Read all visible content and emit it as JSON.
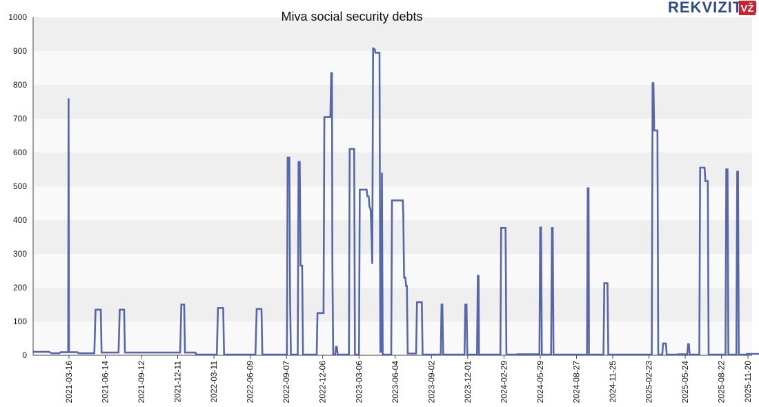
{
  "logo": {
    "text": "REKVIZITAI",
    "badge": "VŽ",
    "text_color": "#2d4a8a",
    "badge_color": "#d0202a"
  },
  "chart_data": {
    "type": "line",
    "title": "Miva social security debts",
    "xlabel": "",
    "ylabel": "",
    "ylim": [
      0,
      1000
    ],
    "yticks": [
      0,
      100,
      200,
      300,
      400,
      500,
      600,
      700,
      800,
      900,
      1000
    ],
    "xlim": [
      0,
      1785
    ],
    "xticks": [
      {
        "label": "2021-03-16",
        "x": 89
      },
      {
        "label": "2021-06-14",
        "x": 179
      },
      {
        "label": "2021-09-12",
        "x": 269
      },
      {
        "label": "2021-12-11",
        "x": 359
      },
      {
        "label": "2022-03-11",
        "x": 449
      },
      {
        "label": "2022-06-09",
        "x": 539
      },
      {
        "label": "2022-09-07",
        "x": 629
      },
      {
        "label": "2022-12-06",
        "x": 719
      },
      {
        "label": "2023-03-06",
        "x": 809
      },
      {
        "label": "2023-06-04",
        "x": 899
      },
      {
        "label": "2023-09-02",
        "x": 989
      },
      {
        "label": "2023-12-01",
        "x": 1079
      },
      {
        "label": "2024-02-29",
        "x": 1169
      },
      {
        "label": "2024-05-29",
        "x": 1259
      },
      {
        "label": "2024-08-27",
        "x": 1349
      },
      {
        "label": "2024-11-25",
        "x": 1439
      },
      {
        "label": "2025-02-23",
        "x": 1529
      },
      {
        "label": "2025-05-24",
        "x": 1619
      },
      {
        "label": "2025-08-22",
        "x": 1709
      },
      {
        "label": "2025-11-20",
        "x": 1799
      }
    ],
    "grid": "horizontal-bands",
    "series": [
      {
        "name": "Social security debts",
        "color": "#3a4f9c",
        "points": [
          [
            0,
            10
          ],
          [
            40,
            10
          ],
          [
            45,
            6
          ],
          [
            65,
            6
          ],
          [
            68,
            9
          ],
          [
            87,
            9
          ],
          [
            88,
            760
          ],
          [
            89,
            9
          ],
          [
            110,
            9
          ],
          [
            113,
            6
          ],
          [
            152,
            6
          ],
          [
            155,
            135
          ],
          [
            168,
            135
          ],
          [
            170,
            8
          ],
          [
            212,
            8
          ],
          [
            215,
            135
          ],
          [
            226,
            135
          ],
          [
            228,
            8
          ],
          [
            365,
            8
          ],
          [
            368,
            150
          ],
          [
            375,
            150
          ],
          [
            377,
            8
          ],
          [
            403,
            8
          ],
          [
            405,
            2
          ],
          [
            456,
            2
          ],
          [
            459,
            140
          ],
          [
            472,
            140
          ],
          [
            474,
            2
          ],
          [
            552,
            2
          ],
          [
            555,
            137
          ],
          [
            567,
            137
          ],
          [
            569,
            2
          ],
          [
            630,
            2
          ],
          [
            632,
            585
          ],
          [
            636,
            585
          ],
          [
            638,
            170
          ],
          [
            640,
            2
          ],
          [
            657,
            2
          ],
          [
            659,
            572
          ],
          [
            662,
            572
          ],
          [
            664,
            265
          ],
          [
            668,
            265
          ],
          [
            670,
            2
          ],
          [
            704,
            2
          ],
          [
            706,
            125
          ],
          [
            721,
            125
          ],
          [
            723,
            705
          ],
          [
            738,
            705
          ],
          [
            740,
            835
          ],
          [
            742,
            835
          ],
          [
            743,
            275
          ],
          [
            745,
            2
          ],
          [
            750,
            2
          ],
          [
            752,
            25
          ],
          [
            754,
            25
          ],
          [
            756,
            2
          ],
          [
            784,
            2
          ],
          [
            786,
            610
          ],
          [
            797,
            610
          ],
          [
            799,
            2
          ],
          [
            809,
            2
          ],
          [
            811,
            490
          ],
          [
            828,
            490
          ],
          [
            830,
            470
          ],
          [
            833,
            470
          ],
          [
            835,
            440
          ],
          [
            838,
            430
          ],
          [
            840,
            360
          ],
          [
            842,
            270
          ],
          [
            844,
            910
          ],
          [
            846,
            905
          ],
          [
            848,
            905
          ],
          [
            850,
            895
          ],
          [
            860,
            895
          ],
          [
            862,
            10
          ],
          [
            864,
            10
          ],
          [
            866,
            540
          ],
          [
            868,
            2
          ],
          [
            889,
            2
          ],
          [
            891,
            458
          ],
          [
            918,
            458
          ],
          [
            919,
            415
          ],
          [
            921,
            230
          ],
          [
            924,
            230
          ],
          [
            926,
            205
          ],
          [
            928,
            205
          ],
          [
            930,
            5
          ],
          [
            951,
            5
          ],
          [
            953,
            157
          ],
          [
            965,
            157
          ],
          [
            967,
            2
          ],
          [
            1012,
            2
          ],
          [
            1014,
            150
          ],
          [
            1016,
            150
          ],
          [
            1018,
            2
          ],
          [
            1071,
            2
          ],
          [
            1073,
            150
          ],
          [
            1076,
            150
          ],
          [
            1078,
            2
          ],
          [
            1102,
            2
          ],
          [
            1104,
            235
          ],
          [
            1106,
            235
          ],
          [
            1107,
            2
          ],
          [
            1160,
            2
          ],
          [
            1162,
            377
          ],
          [
            1173,
            377
          ],
          [
            1175,
            2
          ],
          [
            1200,
            2
          ],
          [
            1202,
            3
          ],
          [
            1257,
            3
          ],
          [
            1259,
            378
          ],
          [
            1261,
            378
          ],
          [
            1263,
            2
          ],
          [
            1286,
            2
          ],
          [
            1288,
            377
          ],
          [
            1290,
            377
          ],
          [
            1292,
            2
          ],
          [
            1375,
            2
          ],
          [
            1377,
            494
          ],
          [
            1379,
            494
          ],
          [
            1380,
            2
          ],
          [
            1416,
            2
          ],
          [
            1418,
            213
          ],
          [
            1426,
            213
          ],
          [
            1428,
            2
          ],
          [
            1536,
            2
          ],
          [
            1538,
            805
          ],
          [
            1540,
            805
          ],
          [
            1542,
            665
          ],
          [
            1550,
            665
          ],
          [
            1552,
            2
          ],
          [
            1562,
            2
          ],
          [
            1564,
            35
          ],
          [
            1571,
            35
          ],
          [
            1573,
            2
          ],
          [
            1600,
            2
          ],
          [
            1602,
            3
          ],
          [
            1624,
            3
          ],
          [
            1626,
            33
          ],
          [
            1628,
            33
          ],
          [
            1630,
            2
          ],
          [
            1654,
            2
          ],
          [
            1656,
            555
          ],
          [
            1667,
            555
          ],
          [
            1669,
            515
          ],
          [
            1675,
            515
          ],
          [
            1677,
            2
          ],
          [
            1719,
            2
          ],
          [
            1721,
            550
          ],
          [
            1724,
            550
          ],
          [
            1726,
            2
          ],
          [
            1746,
            2
          ],
          [
            1748,
            543
          ],
          [
            1750,
            543
          ],
          [
            1752,
            2
          ],
          [
            1770,
            2
          ],
          [
            1772,
            4
          ],
          [
            1805,
            4
          ]
        ]
      }
    ]
  }
}
